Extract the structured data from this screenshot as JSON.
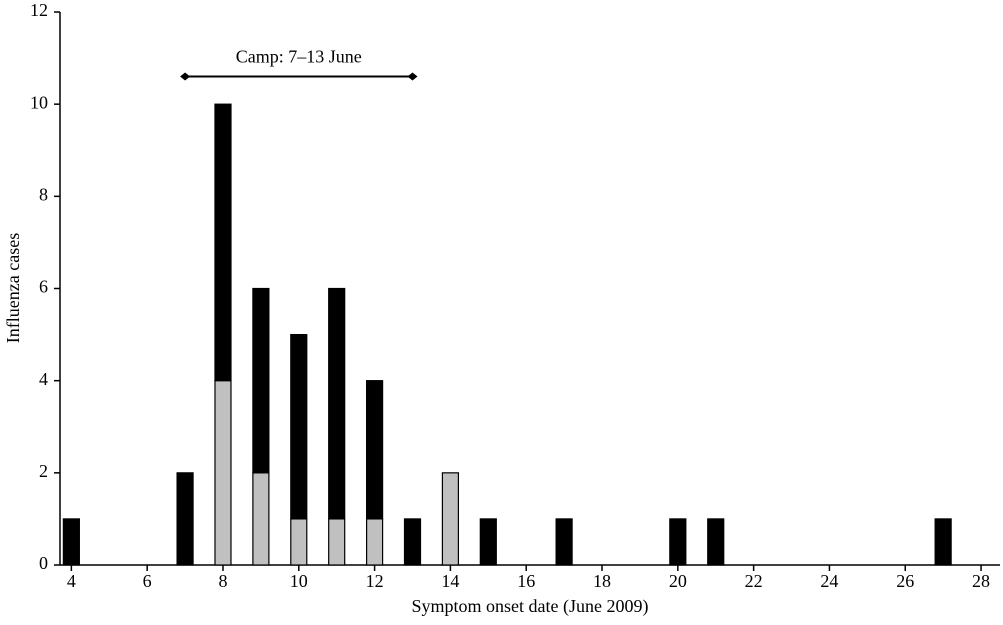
{
  "chart_data": {
    "type": "stacked-bar",
    "x": [
      4,
      7,
      8,
      9,
      10,
      11,
      12,
      13,
      14,
      15,
      17,
      20,
      21,
      27
    ],
    "series": [
      {
        "color": "#c0c0c0",
        "values": [
          0,
          0,
          4,
          2,
          1,
          1,
          1,
          0,
          2,
          0,
          0,
          0,
          0,
          0
        ]
      },
      {
        "color": "#000000",
        "values": [
          1,
          2,
          6,
          4,
          4,
          5,
          3,
          1,
          0,
          1,
          1,
          1,
          1,
          1
        ]
      }
    ],
    "xlabel": "Symptom onset date (June 2009)",
    "ylabel": "Influenza cases",
    "xlim": [
      3.7,
      28.5
    ],
    "xticks": [
      4,
      6,
      8,
      10,
      12,
      14,
      16,
      18,
      20,
      22,
      24,
      26,
      28
    ],
    "ylim": [
      0,
      12
    ],
    "yticks": [
      0,
      2,
      4,
      6,
      8,
      10,
      12
    ],
    "annotation": {
      "text": "Camp: 7–13 June",
      "x": [
        7,
        13
      ],
      "y": 10.6
    }
  }
}
